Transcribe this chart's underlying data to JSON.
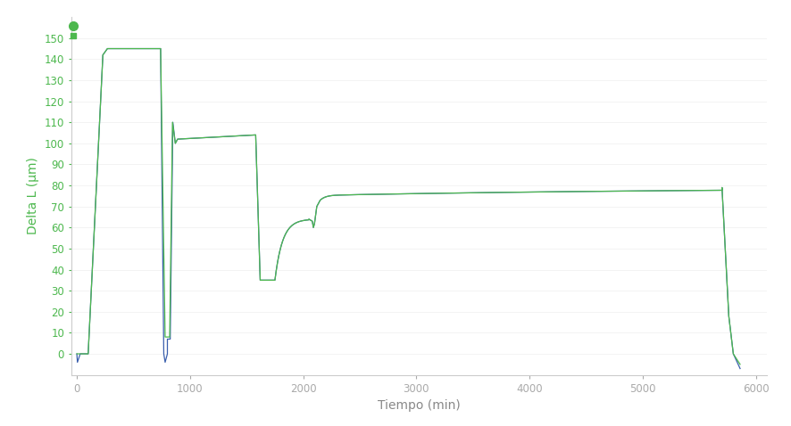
{
  "xlabel": "Tiempo (min)",
  "ylabel": "Delta L (μm)",
  "xlim": [
    -50,
    6100
  ],
  "ylim": [
    -10,
    160
  ],
  "yticks": [
    0,
    10,
    20,
    30,
    40,
    50,
    60,
    70,
    80,
    90,
    100,
    110,
    120,
    130,
    140,
    150
  ],
  "xticks": [
    0,
    1000,
    2000,
    3000,
    4000,
    5000,
    6000
  ],
  "line_color_green": "#4db84e",
  "line_color_blue": "#3a5fad",
  "background_color": "#ffffff",
  "tick_color_y": "#4db84e",
  "tick_color_x": "#aaaaaa",
  "xlabel_color": "#888888",
  "ylabel_color": "#4db84e",
  "spine_color": "#cccccc",
  "grid_color": "#eeeeee",
  "figsize": [
    8.86,
    4.78
  ],
  "dpi": 100
}
